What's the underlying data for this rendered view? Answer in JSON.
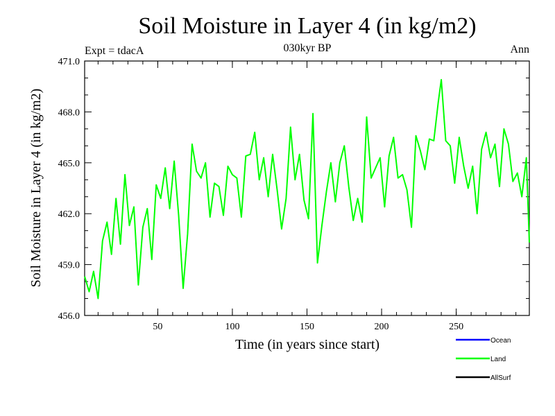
{
  "chart_data": {
    "type": "line",
    "title": "Soil Moisture in Layer 4 (in kg/m2)",
    "subtitle": "030kyr BP",
    "left_label": "Expt = tdacA",
    "right_label": "Ann",
    "xlabel": "Time (in years since start)",
    "ylabel": "Soil Moisture in Layer 4 (in kg/m2)",
    "xlim": [
      1,
      299
    ],
    "ylim": [
      456.0,
      471.0
    ],
    "x_ticks": [
      50,
      100,
      150,
      200,
      250
    ],
    "y_ticks": [
      "456.0",
      "459.0",
      "462.0",
      "465.0",
      "468.0",
      "471.0"
    ],
    "legend": [
      {
        "name": "Ocean",
        "color": "#0000ff"
      },
      {
        "name": "Land",
        "color": "#00ff00"
      },
      {
        "name": "AllSurf",
        "color": "#000000"
      }
    ],
    "series": [
      {
        "name": "Land",
        "color": "#00ff00",
        "x": [
          1,
          4,
          7,
          10,
          13,
          16,
          19,
          22,
          25,
          28,
          31,
          34,
          37,
          40,
          43,
          46,
          49,
          52,
          55,
          58,
          61,
          64,
          67,
          70,
          73,
          76,
          79,
          82,
          85,
          88,
          91,
          94,
          97,
          100,
          103,
          106,
          109,
          112,
          115,
          118,
          121,
          124,
          127,
          130,
          133,
          136,
          139,
          142,
          145,
          148,
          151,
          154,
          157,
          160,
          163,
          166,
          169,
          172,
          175,
          178,
          181,
          184,
          187,
          190,
          193,
          196,
          199,
          202,
          205,
          208,
          211,
          214,
          217,
          220,
          223,
          226,
          229,
          232,
          235,
          238,
          240,
          243,
          246,
          249,
          252,
          255,
          258,
          261,
          264,
          267,
          270,
          273,
          276,
          279,
          282,
          285,
          288,
          291,
          294,
          297,
          299
        ],
        "values": [
          458.3,
          457.4,
          458.6,
          457.0,
          460.4,
          461.5,
          459.6,
          462.9,
          460.2,
          464.3,
          461.3,
          462.4,
          457.8,
          461.2,
          462.3,
          459.3,
          463.7,
          462.9,
          464.7,
          462.3,
          465.1,
          461.9,
          457.6,
          460.8,
          466.1,
          464.5,
          464.1,
          465.0,
          461.8,
          463.8,
          463.6,
          461.9,
          464.8,
          464.3,
          464.1,
          461.8,
          465.4,
          465.5,
          466.8,
          464.0,
          465.3,
          463.0,
          465.5,
          463.4,
          461.1,
          462.9,
          467.1,
          464.0,
          465.5,
          462.8,
          461.7,
          467.9,
          459.1,
          461.3,
          463.3,
          465.0,
          462.7,
          465.0,
          466.0,
          463.6,
          461.6,
          462.9,
          461.5,
          467.7,
          464.1,
          464.7,
          465.3,
          462.4,
          465.4,
          466.5,
          464.1,
          464.3,
          463.4,
          461.2,
          466.6,
          465.7,
          464.6,
          466.4,
          466.3,
          468.6,
          469.9,
          466.3,
          466.0,
          463.8,
          466.5,
          464.8,
          463.5,
          464.8,
          462.0,
          465.8,
          466.8,
          465.3,
          466.1,
          463.6,
          467.0,
          466.1,
          463.9,
          464.4,
          463.0,
          465.3,
          460.3
        ]
      }
    ]
  }
}
